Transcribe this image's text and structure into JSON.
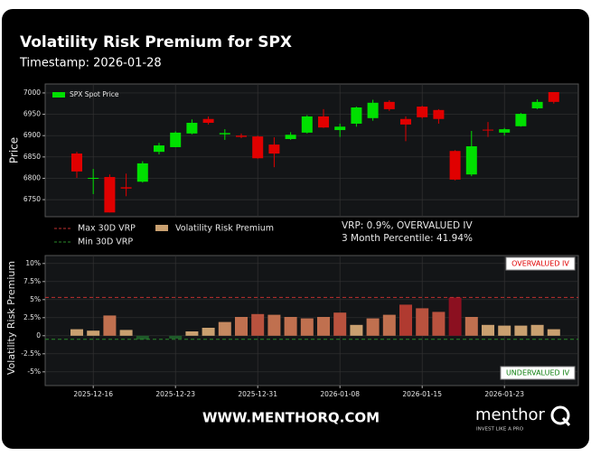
{
  "header": {
    "title": "Volatility Risk Premium for SPX",
    "subtitle": "Timestamp: 2026-01-28"
  },
  "footer": "WWW.MENTHORQ.COM",
  "brand": {
    "name": "menthor",
    "tagline": "INVEST LIKE A PRO"
  },
  "chart_data": [
    {
      "type": "candlestick",
      "ylabel": "Price",
      "categories": [
        null,
        null,
        null,
        null,
        null,
        null,
        null,
        null,
        null,
        null,
        null,
        null,
        null,
        null,
        null,
        null,
        null,
        null,
        null,
        null,
        null,
        null,
        null,
        null,
        null,
        null,
        null,
        null,
        null,
        null
      ],
      "series": [
        {
          "name": "SPX Spot Price",
          "color": "#00e000",
          "up_color": "#00e000",
          "down_color": "#e00000",
          "open": [
            6858,
            6799,
            6803,
            6779,
            6792,
            6862,
            6873,
            6905,
            6939,
            6903,
            6900,
            6898,
            6879,
            6892,
            6907,
            6945,
            6913,
            6928,
            6941,
            6979,
            6939,
            6968,
            6960,
            6864,
            6809,
            6914,
            6907,
            6922,
            6964,
            7002
          ],
          "high": [
            6862,
            6822,
            6809,
            6811,
            6840,
            6883,
            6910,
            6938,
            6945,
            6915,
            6905,
            6900,
            6896,
            6908,
            6948,
            6962,
            6928,
            6968,
            6984,
            6983,
            6945,
            6970,
            6962,
            6866,
            6911,
            6932,
            6918,
            6953,
            6985,
            7002
          ],
          "low": [
            6801,
            6763,
            6720,
            6758,
            6790,
            6856,
            6873,
            6903,
            6926,
            6890,
            6894,
            6846,
            6826,
            6890,
            6905,
            6918,
            6897,
            6921,
            6935,
            6958,
            6887,
            6940,
            6928,
            6795,
            6805,
            6897,
            6900,
            6921,
            6962,
            6975
          ],
          "close": [
            6816,
            6801,
            6720,
            6776,
            6835,
            6877,
            6907,
            6930,
            6930,
            6906,
            6897,
            6847,
            6858,
            6902,
            6945,
            6919,
            6921,
            6966,
            6977,
            6962,
            6926,
            6943,
            6939,
            6797,
            6875,
            6912,
            6915,
            6951,
            6979,
            6979
          ]
        }
      ],
      "ylim": [
        6710,
        7021
      ],
      "yticks": [
        6750,
        6800,
        6850,
        6900,
        6950,
        7000
      ],
      "grid": true,
      "legend": "upper left"
    },
    {
      "type": "bar",
      "ylabel": "Volatility Risk Premium",
      "categories": [
        null,
        "2025-12-16",
        null,
        null,
        null,
        null,
        "2025-12-23",
        null,
        null,
        null,
        null,
        "2025-12-31",
        null,
        null,
        null,
        null,
        "2026-01-08",
        null,
        null,
        null,
        null,
        "2026-01-15",
        null,
        null,
        null,
        null,
        "2026-01-23",
        null,
        null,
        null
      ],
      "series": [
        {
          "name": "Volatility Risk Premium",
          "color": "#c9a070",
          "values": [
            0.9,
            0.7,
            2.8,
            0.8,
            -0.5,
            0,
            -0.4,
            0.6,
            1.1,
            1.9,
            2.6,
            3.0,
            2.9,
            2.6,
            2.4,
            2.6,
            3.2,
            1.5,
            2.4,
            2.9,
            4.3,
            3.8,
            3.3,
            5.3,
            2.6,
            1.5,
            1.4,
            1.4,
            1.5,
            0.9
          ],
          "colors": [
            "#c9a070",
            "#c9a070",
            "#c0704f",
            "#c9a070",
            "#1f5a2a",
            "#1f5a2a",
            "#1f5a2a",
            "#c9a070",
            "#c9a070",
            "#c48860",
            "#c0704f",
            "#b9523e",
            "#c0704f",
            "#c0704f",
            "#c0704f",
            "#c0704f",
            "#b9523e",
            "#c9a070",
            "#c0704f",
            "#c0704f",
            "#b03a30",
            "#b9523e",
            "#b9523e",
            "#8b1020",
            "#c0704f",
            "#c9a070",
            "#c9a070",
            "#c9a070",
            "#c9a070",
            "#c9a070"
          ]
        }
      ],
      "lines": [
        {
          "name": "Max 30D VRP",
          "value": 5.3,
          "color": "#c03030"
        },
        {
          "name": "Min 30D VRP",
          "value": -0.5,
          "color": "#2a8a2a"
        }
      ],
      "annotations": [
        "VRP: 0.9%, OVERVALUED IV",
        "3 Month Percentile: 41.94%"
      ],
      "zones": [
        {
          "label": "OVERVALUED IV",
          "color": "#e00000"
        },
        {
          "label": "UNDERVALUED IV",
          "color": "#108010"
        }
      ],
      "ylim": [
        -6.9,
        11.1
      ],
      "yticks": [
        {
          "value": -5,
          "label": "-5%"
        },
        {
          "value": -2.5,
          "label": "-2.5%"
        },
        0,
        {
          "value": 2.5,
          "label": "2.5%"
        },
        {
          "value": 5,
          "label": "5%"
        },
        {
          "value": 7.5,
          "label": "7.5%"
        },
        {
          "value": 10,
          "label": "10%"
        }
      ],
      "grid": true
    }
  ]
}
